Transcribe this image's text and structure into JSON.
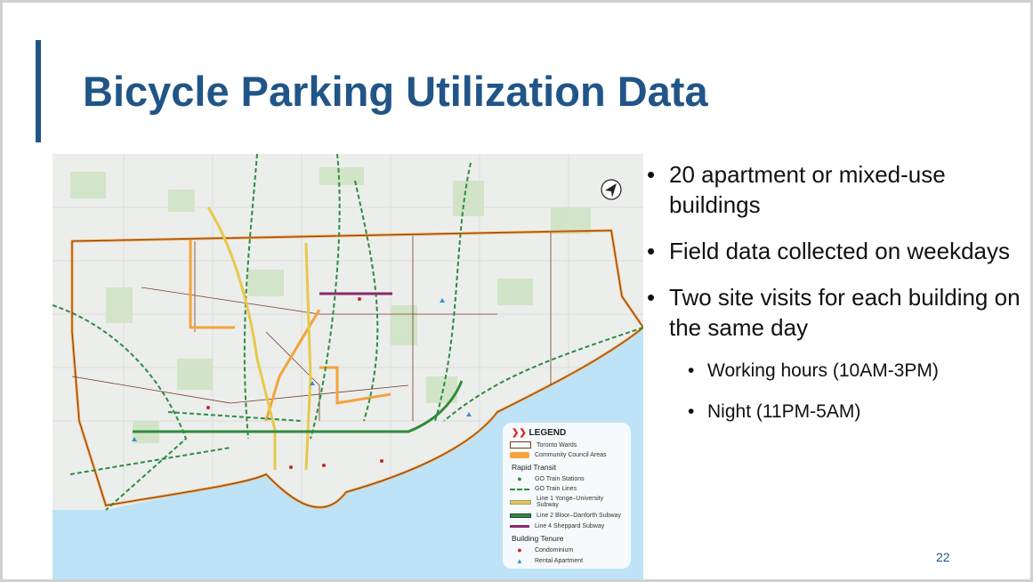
{
  "title": "Bicycle Parking Utilization Data",
  "bullets": [
    {
      "text": "20 apartment or mixed-use buildings",
      "level": 1
    },
    {
      "text": "Field data collected on weekdays",
      "level": 1
    },
    {
      "text": "Two site visits for each building on the same day",
      "level": 1
    },
    {
      "text": "Working hours (10AM-3PM)",
      "level": 2
    },
    {
      "text": "Night (11PM-5AM)",
      "level": 2
    }
  ],
  "page_number": "22",
  "map": {
    "compass_icon": "north-arrow-icon",
    "legend": {
      "title": "LEGEND",
      "wards": "Toronto Wards",
      "council": "Community Council Areas",
      "rapid_transit": "Rapid Transit",
      "go_stations": "GO Train Stations",
      "go_lines": "GO Train Lines",
      "line1": "Line 1 Yonge–University Subway",
      "line2": "Line 2 Bloor–Danforth Subway",
      "line4": "Line 4 Sheppard Subway",
      "tenure": "Building Tenure",
      "condo": "Condominium",
      "rental": "Rental Apartment"
    },
    "colors": {
      "lake": "#bfe3f6",
      "council": "#f5a33a",
      "wards": "#7a3b25",
      "go": "#2e8b3e",
      "line1": "#e8c94a",
      "line2": "#2f8a3a",
      "line4": "#8a2a6a",
      "condo": "#c0282d",
      "rental": "#3a8fc8"
    }
  }
}
